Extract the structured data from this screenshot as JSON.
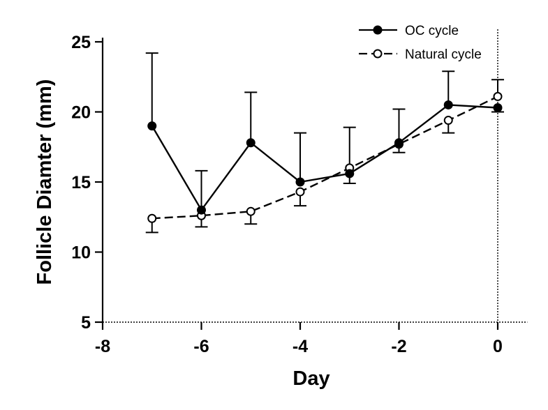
{
  "chart_data": {
    "type": "line",
    "title": "",
    "xlabel": "Day",
    "ylabel": "Follicle Diamter (mm)",
    "xlim": [
      -8,
      0.6
    ],
    "ylim": [
      5,
      25
    ],
    "xticks": [
      -8,
      -6,
      -4,
      -2,
      0
    ],
    "yticks": [
      5,
      10,
      15,
      20,
      25
    ],
    "x_tick_labels": [
      "-8",
      "-6",
      "-4",
      "-2",
      "0"
    ],
    "y_tick_labels": [
      "5",
      "10",
      "15",
      "20",
      "25"
    ],
    "reference_line_x": 0,
    "legend_position": "top-right",
    "series": [
      {
        "name": "OC cycle",
        "marker": "filled-circle",
        "line_style": "solid",
        "x": [
          -7,
          -6,
          -5,
          -4,
          -3,
          -2,
          -1,
          0
        ],
        "y": [
          19.0,
          13.0,
          17.8,
          15.0,
          15.6,
          17.8,
          20.5,
          20.3
        ],
        "error_up": [
          5.2,
          2.8,
          3.6,
          3.5,
          3.3,
          2.4,
          2.4,
          0.0
        ],
        "error_down": [
          0.0,
          0.0,
          0.0,
          0.0,
          0.0,
          0.0,
          0.0,
          0.3
        ]
      },
      {
        "name": "Natural cycle",
        "marker": "open-circle",
        "line_style": "dashed",
        "x": [
          -7,
          -6,
          -5,
          -4,
          -3,
          -2,
          -1,
          0
        ],
        "y": [
          12.4,
          12.6,
          12.9,
          14.3,
          16.0,
          17.7,
          19.4,
          21.1
        ],
        "error_up": [
          0.0,
          0.0,
          0.0,
          0.0,
          0.0,
          0.0,
          0.0,
          1.2
        ],
        "error_down": [
          1.0,
          0.8,
          0.9,
          1.0,
          1.1,
          0.6,
          0.9,
          0.0
        ]
      }
    ]
  }
}
